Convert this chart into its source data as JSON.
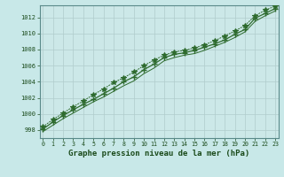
{
  "title": "Graphe pression niveau de la mer (hPa)",
  "x_values": [
    0,
    1,
    2,
    3,
    4,
    5,
    6,
    7,
    8,
    9,
    10,
    11,
    12,
    13,
    14,
    15,
    16,
    17,
    18,
    19,
    20,
    21,
    22,
    23
  ],
  "line1": [
    998.1,
    999.0,
    999.8,
    1000.5,
    1001.2,
    1001.8,
    1002.5,
    1003.2,
    1004.0,
    1004.6,
    1005.5,
    1006.2,
    1007.0,
    1007.4,
    1007.6,
    1007.9,
    1008.3,
    1008.7,
    1009.2,
    1009.9,
    1010.5,
    1011.9,
    1012.5,
    1013.1
  ],
  "line2": [
    998.4,
    999.3,
    1000.1,
    1000.9,
    1001.6,
    1002.4,
    1003.1,
    1003.9,
    1004.5,
    1005.2,
    1006.0,
    1006.7,
    1007.3,
    1007.7,
    1007.9,
    1008.2,
    1008.6,
    1009.1,
    1009.7,
    1010.3,
    1011.0,
    1012.2,
    1012.9,
    1013.4
  ],
  "line3": [
    997.8,
    998.6,
    999.4,
    1000.1,
    1000.8,
    1001.5,
    1002.1,
    1002.8,
    1003.5,
    1004.1,
    1005.0,
    1005.7,
    1006.6,
    1007.0,
    1007.3,
    1007.5,
    1007.9,
    1008.4,
    1008.9,
    1009.5,
    1010.2,
    1011.5,
    1012.2,
    1012.8
  ],
  "marker_x": [
    0,
    2,
    4,
    6,
    8,
    10,
    12,
    14,
    16,
    18,
    20,
    22,
    23
  ],
  "line_color": "#2d6a2d",
  "bg_color": "#c8e8e8",
  "plot_bg": "#cce8e8",
  "grid_color": "#b0cccc",
  "text_color": "#1a4a1a",
  "ylim": [
    997.0,
    1013.5
  ],
  "yticks": [
    998,
    1000,
    1002,
    1004,
    1006,
    1008,
    1010,
    1012
  ],
  "xticks": [
    0,
    1,
    2,
    3,
    4,
    5,
    6,
    7,
    8,
    9,
    10,
    11,
    12,
    13,
    14,
    15,
    16,
    17,
    18,
    19,
    20,
    21,
    22,
    23
  ]
}
